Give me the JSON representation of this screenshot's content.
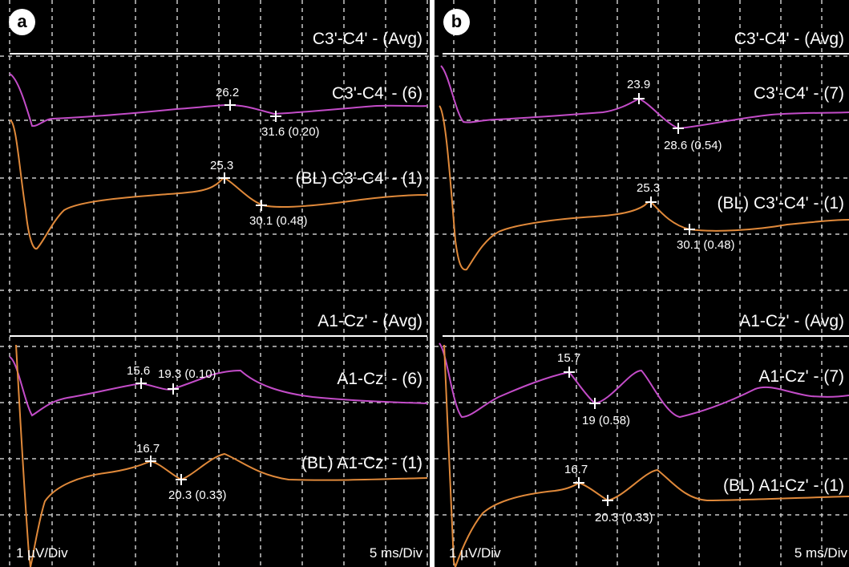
{
  "colors": {
    "background": "#000000",
    "grid": "#c8c8c8",
    "avg_line": "#ffffff",
    "test_trace": "#c34cc8",
    "baseline_trace": "#e0893a",
    "text": "#ffffff"
  },
  "chart_data": [
    {
      "panel": "a",
      "type": "line",
      "scale": {
        "y": "1 µV/Div",
        "x": "5 ms/Div"
      },
      "sections": [
        {
          "header": "C3'-C4' - (Avg)",
          "traces": [
            {
              "name": "C3'-C4' - (6)",
              "color": "#c34cc8",
              "markers": [
                {
                  "latency": 26.2,
                  "label": "26.2"
                },
                {
                  "latency": 31.6,
                  "amplitude": 0.2,
                  "label": "31.6 (0.20)"
                }
              ]
            },
            {
              "name": "(BL) C3'-C4' - (1)",
              "color": "#e0893a",
              "markers": [
                {
                  "latency": 25.3,
                  "label": "25.3"
                },
                {
                  "latency": 30.1,
                  "amplitude": 0.48,
                  "label": "30.1 (0.48)"
                }
              ]
            }
          ]
        },
        {
          "header": "A1-Cz' - (Avg)",
          "traces": [
            {
              "name": "A1-Cz' - (6)",
              "color": "#c34cc8",
              "markers": [
                {
                  "latency": 15.6,
                  "label": "15.6"
                },
                {
                  "latency": 19.3,
                  "amplitude": 0.1,
                  "label": "19.3 (0.10)"
                }
              ]
            },
            {
              "name": "(BL) A1-Cz' - (1)",
              "color": "#e0893a",
              "markers": [
                {
                  "latency": 16.7,
                  "label": "16.7"
                },
                {
                  "latency": 20.3,
                  "amplitude": 0.33,
                  "label": "20.3 (0.33)"
                }
              ]
            }
          ]
        }
      ]
    },
    {
      "panel": "b",
      "type": "line",
      "scale": {
        "y": "1 µV/Div",
        "x": "5 ms/Div"
      },
      "sections": [
        {
          "header": "C3'-C4' - (Avg)",
          "traces": [
            {
              "name": "C3'-C4' - (7)",
              "color": "#c34cc8",
              "markers": [
                {
                  "latency": 23.9,
                  "label": "23.9"
                },
                {
                  "latency": 28.6,
                  "amplitude": 0.54,
                  "label": "28.6 (0.54)"
                }
              ]
            },
            {
              "name": "(BL) C3'-C4' - (1)",
              "color": "#e0893a",
              "markers": [
                {
                  "latency": 25.3,
                  "label": "25.3"
                },
                {
                  "latency": 30.1,
                  "amplitude": 0.48,
                  "label": "30.1 (0.48)"
                }
              ]
            }
          ]
        },
        {
          "header": "A1-Cz' - (Avg)",
          "traces": [
            {
              "name": "A1-Cz' - (7)",
              "color": "#c34cc8",
              "markers": [
                {
                  "latency": 15.7,
                  "label": "15.7"
                },
                {
                  "latency": 19,
                  "amplitude": 0.58,
                  "label": "19 (0.58)"
                }
              ]
            },
            {
              "name": "(BL) A1-Cz' - (1)",
              "color": "#e0893a",
              "markers": [
                {
                  "latency": 16.7,
                  "label": "16.7"
                },
                {
                  "latency": 20.3,
                  "amplitude": 0.33,
                  "label": "20.3 (0.33)"
                }
              ]
            }
          ]
        }
      ]
    }
  ]
}
